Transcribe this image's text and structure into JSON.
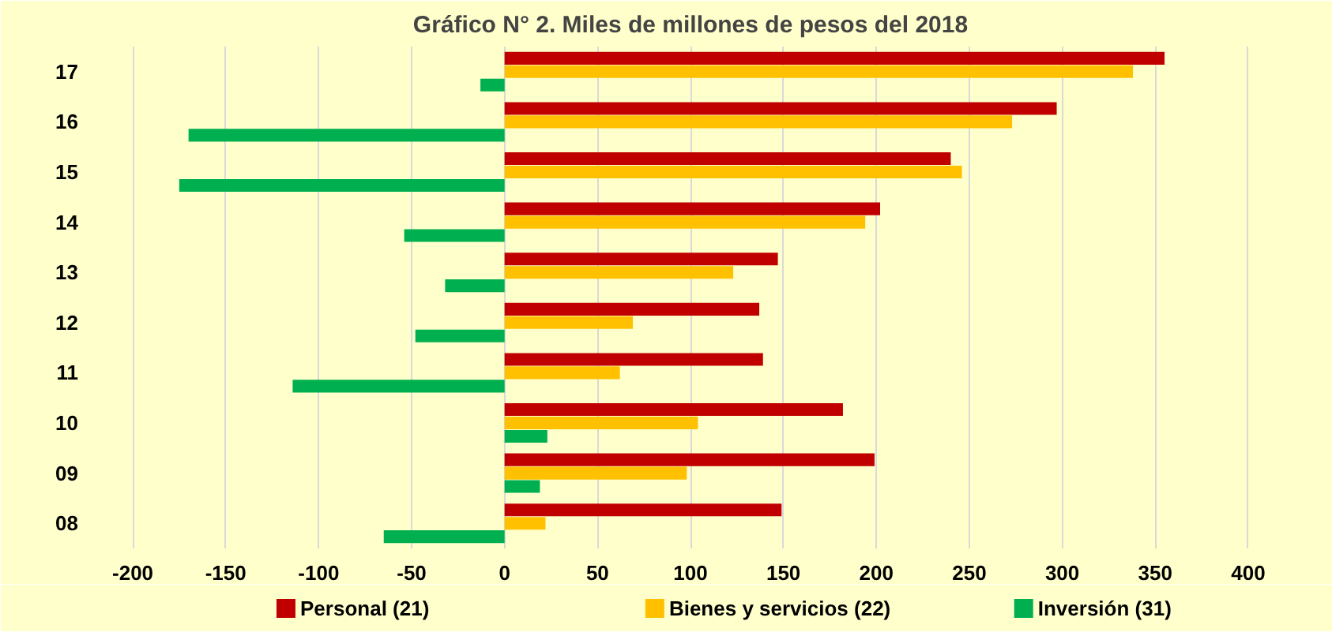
{
  "chart_data": {
    "type": "bar",
    "orientation": "horizontal",
    "title": "Gráfico N° 2. Miles de millones de pesos del 2018",
    "categories": [
      "17",
      "16",
      "15",
      "14",
      "13",
      "12",
      "11",
      "10",
      "09",
      "08"
    ],
    "series": [
      {
        "name": "Personal (21)",
        "color": "#c00000",
        "values": [
          355,
          297,
          240,
          202,
          147,
          137,
          139,
          182,
          199,
          149
        ]
      },
      {
        "name": "Bienes y servicios (22)",
        "color": "#ffc000",
        "values": [
          338,
          273,
          246,
          194,
          123,
          69,
          62,
          104,
          98,
          22
        ]
      },
      {
        "name": "Inversión (31)",
        "color": "#00b050",
        "values": [
          -13,
          -170,
          -175,
          -54,
          -32,
          -48,
          -114,
          23,
          19,
          -65
        ]
      }
    ],
    "xlim": [
      -220,
      420
    ],
    "xticks": [
      {
        "value": -200,
        "label": "-200"
      },
      {
        "value": -150,
        "label": "-150"
      },
      {
        "value": -100,
        "label": "-100"
      },
      {
        "value": -50,
        "label": "-50"
      },
      0,
      50,
      100,
      150,
      200,
      250,
      300,
      350,
      400
    ],
    "grid": "x",
    "legend": "bottom"
  }
}
